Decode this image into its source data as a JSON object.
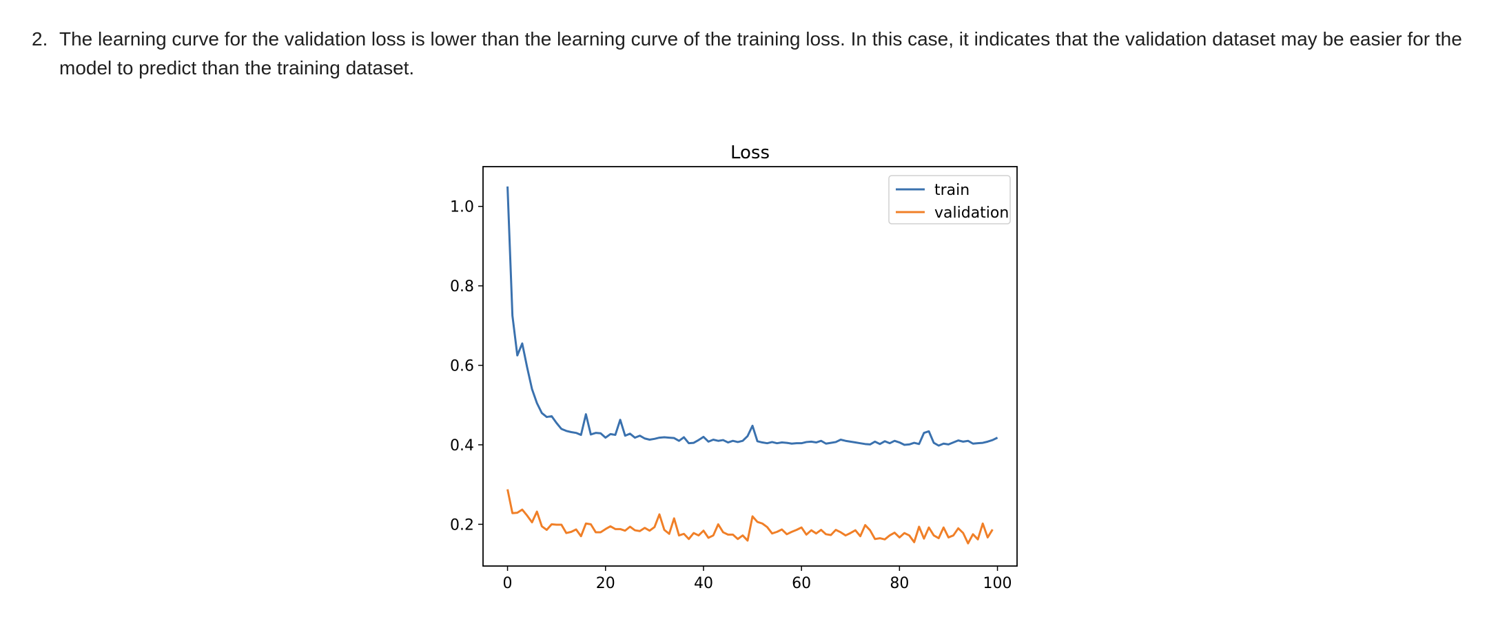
{
  "paragraph": {
    "number": "2.",
    "text": "The learning curve for the validation loss is lower than the learning curve of the training loss. In this case, it indicates that the validation dataset may be easier for the model to predict than the training dataset."
  },
  "chart_data": {
    "type": "line",
    "title": "Loss",
    "xlabel": "",
    "ylabel": "",
    "xlim": [
      -5,
      104
    ],
    "ylim": [
      0.095,
      1.1
    ],
    "xticks": [
      0,
      20,
      40,
      60,
      80,
      100
    ],
    "yticks": [
      0.2,
      0.4,
      0.6,
      0.8,
      1.0
    ],
    "xtick_labels": [
      "0",
      "20",
      "40",
      "60",
      "80",
      "100"
    ],
    "ytick_labels": [
      "0.2",
      "0.4",
      "0.6",
      "0.8",
      "1.0"
    ],
    "grid": false,
    "legend_position": "top-right",
    "series": [
      {
        "name": "train",
        "color": "#3a71ae",
        "values": [
          1.05,
          0.725,
          0.625,
          0.655,
          0.595,
          0.54,
          0.505,
          0.48,
          0.47,
          0.472,
          0.455,
          0.44,
          0.435,
          0.432,
          0.43,
          0.425,
          0.477,
          0.426,
          0.43,
          0.429,
          0.418,
          0.427,
          0.425,
          0.463,
          0.423,
          0.428,
          0.418,
          0.423,
          0.416,
          0.413,
          0.415,
          0.418,
          0.419,
          0.418,
          0.417,
          0.41,
          0.419,
          0.404,
          0.405,
          0.412,
          0.42,
          0.408,
          0.413,
          0.41,
          0.412,
          0.406,
          0.41,
          0.407,
          0.41,
          0.422,
          0.448,
          0.409,
          0.406,
          0.404,
          0.407,
          0.404,
          0.406,
          0.405,
          0.403,
          0.404,
          0.404,
          0.407,
          0.408,
          0.406,
          0.41,
          0.403,
          0.405,
          0.407,
          0.413,
          0.41,
          0.408,
          0.406,
          0.404,
          0.402,
          0.401,
          0.408,
          0.402,
          0.409,
          0.404,
          0.41,
          0.406,
          0.4,
          0.401,
          0.405,
          0.402,
          0.43,
          0.434,
          0.405,
          0.398,
          0.403,
          0.401,
          0.406,
          0.411,
          0.408,
          0.41,
          0.403,
          0.404,
          0.405,
          0.408,
          0.412,
          0.418
        ]
      },
      {
        "name": "validation",
        "color": "#f07f27",
        "values": [
          0.288,
          0.228,
          0.229,
          0.237,
          0.222,
          0.205,
          0.232,
          0.195,
          0.186,
          0.2,
          0.199,
          0.199,
          0.178,
          0.181,
          0.187,
          0.17,
          0.202,
          0.2,
          0.18,
          0.18,
          0.188,
          0.195,
          0.188,
          0.188,
          0.184,
          0.194,
          0.185,
          0.183,
          0.191,
          0.184,
          0.193,
          0.225,
          0.186,
          0.176,
          0.215,
          0.172,
          0.176,
          0.163,
          0.178,
          0.172,
          0.184,
          0.166,
          0.172,
          0.2,
          0.18,
          0.174,
          0.174,
          0.163,
          0.172,
          0.159,
          0.22,
          0.206,
          0.202,
          0.193,
          0.177,
          0.181,
          0.187,
          0.175,
          0.181,
          0.186,
          0.192,
          0.174,
          0.185,
          0.177,
          0.186,
          0.175,
          0.173,
          0.186,
          0.18,
          0.172,
          0.178,
          0.185,
          0.17,
          0.198,
          0.185,
          0.163,
          0.165,
          0.162,
          0.172,
          0.179,
          0.167,
          0.178,
          0.172,
          0.155,
          0.194,
          0.164,
          0.192,
          0.172,
          0.165,
          0.192,
          0.167,
          0.172,
          0.19,
          0.178,
          0.152,
          0.175,
          0.162,
          0.202,
          0.167,
          0.187
        ]
      }
    ]
  }
}
